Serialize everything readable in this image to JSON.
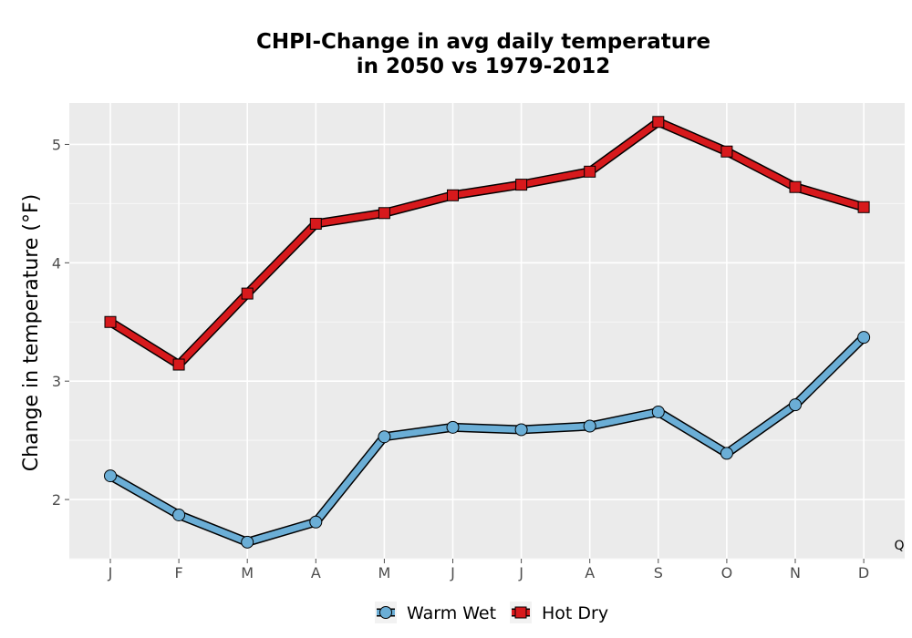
{
  "chart_data": {
    "type": "line",
    "title_lines": [
      "CHPI-Change in avg daily temperature",
      "in 2050 vs 1979-2012"
    ],
    "xlabel": "",
    "ylabel": "Change in temperature (°F)",
    "categories": [
      "J",
      "F",
      "M",
      "A",
      "M",
      "J",
      "J",
      "A",
      "S",
      "O",
      "N",
      "D"
    ],
    "yticks": [
      2,
      3,
      4,
      5
    ],
    "ylim": [
      1.5,
      5.35
    ],
    "grid": true,
    "legend_position": "bottom",
    "corner_label": "Q",
    "series": [
      {
        "name": "Warm Wet",
        "marker": "circle",
        "color": "#6baed6",
        "values": [
          2.2,
          1.87,
          1.64,
          1.81,
          2.53,
          2.61,
          2.59,
          2.62,
          2.74,
          2.39,
          2.8,
          3.37
        ]
      },
      {
        "name": "Hot Dry",
        "marker": "square",
        "color": "#d7191c",
        "values": [
          3.5,
          3.14,
          3.74,
          4.33,
          4.42,
          4.57,
          4.66,
          4.77,
          5.19,
          4.94,
          4.64,
          4.47
        ]
      }
    ]
  }
}
